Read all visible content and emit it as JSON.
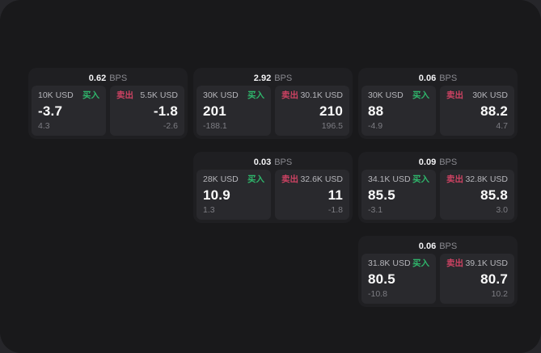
{
  "colors": {
    "buy_green": "#2fb56b",
    "sell_red": "#cc4262",
    "window_bg": "#19191b",
    "card_bg": "#1f1f22",
    "panel_bg": "#29292d"
  },
  "labels": {
    "bps_unit": "BPS",
    "buy": "买入",
    "sell": "卖出"
  },
  "cards": [
    {
      "bps": "0.62",
      "buy": {
        "amount": "10K USD",
        "side": "买入",
        "price": "-3.7",
        "delta": "4.3"
      },
      "sell": {
        "side": "卖出",
        "amount": "5.5K USD",
        "price": "-1.8",
        "delta": "-2.6"
      }
    },
    {
      "bps": "2.92",
      "buy": {
        "amount": "30K USD",
        "side": "买入",
        "price": "201",
        "delta": "-188.1"
      },
      "sell": {
        "side": "卖出",
        "amount": "30.1K USD",
        "price": "210",
        "delta": "196.5"
      }
    },
    {
      "bps": "0.06",
      "buy": {
        "amount": "30K USD",
        "side": "买入",
        "price": "88",
        "delta": "-4.9"
      },
      "sell": {
        "side": "卖出",
        "amount": "30K USD",
        "price": "88.2",
        "delta": "4.7"
      }
    },
    {
      "bps": "0.03",
      "buy": {
        "amount": "28K USD",
        "side": "买入",
        "price": "10.9",
        "delta": "1.3"
      },
      "sell": {
        "side": "卖出",
        "amount": "32.6K USD",
        "price": "11",
        "delta": "-1.8"
      }
    },
    {
      "bps": "0.09",
      "buy": {
        "amount": "34.1K USD",
        "side": "买入",
        "price": "85.5",
        "delta": "-3.1"
      },
      "sell": {
        "side": "卖出",
        "amount": "32.8K USD",
        "price": "85.8",
        "delta": "3.0"
      }
    },
    {
      "bps": "0.06",
      "buy": {
        "amount": "31.8K USD",
        "side": "买入",
        "price": "80.5",
        "delta": "-10.8"
      },
      "sell": {
        "side": "卖出",
        "amount": "39.1K USD",
        "price": "80.7",
        "delta": "10.2"
      }
    }
  ]
}
